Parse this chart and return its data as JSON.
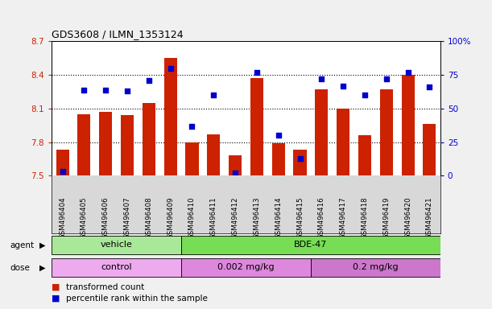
{
  "title": "GDS3608 / ILMN_1353124",
  "samples": [
    "GSM496404",
    "GSM496405",
    "GSM496406",
    "GSM496407",
    "GSM496408",
    "GSM496409",
    "GSM496410",
    "GSM496411",
    "GSM496412",
    "GSM496413",
    "GSM496414",
    "GSM496415",
    "GSM496416",
    "GSM496417",
    "GSM496418",
    "GSM496419",
    "GSM496420",
    "GSM496421"
  ],
  "bar_values": [
    7.73,
    8.05,
    8.07,
    8.04,
    8.15,
    8.55,
    7.8,
    7.87,
    7.68,
    8.37,
    7.79,
    7.73,
    8.27,
    8.1,
    7.86,
    8.27,
    8.4,
    7.96
  ],
  "dot_percentiles": [
    3,
    64,
    64,
    63,
    71,
    80,
    37,
    60,
    2,
    77,
    30,
    13,
    72,
    67,
    60,
    72,
    77,
    66
  ],
  "ymin": 7.5,
  "ymax": 8.7,
  "yticks": [
    7.5,
    7.8,
    8.1,
    8.4,
    8.7
  ],
  "ytick_labels": [
    "7.5",
    "7.8",
    "8.1",
    "8.4",
    "8.7"
  ],
  "right_yticks": [
    0,
    25,
    50,
    75,
    100
  ],
  "right_ytick_labels": [
    "0",
    "25",
    "50",
    "75",
    "100%"
  ],
  "bar_color": "#cc2200",
  "dot_color": "#0000cc",
  "agent_groups": [
    {
      "label": "vehicle",
      "start": 0,
      "end": 6,
      "color": "#aae899"
    },
    {
      "label": "BDE-47",
      "start": 6,
      "end": 18,
      "color": "#77dd55"
    }
  ],
  "dose_groups": [
    {
      "label": "control",
      "start": 0,
      "end": 6,
      "color": "#eeaaee"
    },
    {
      "label": "0.002 mg/kg",
      "start": 6,
      "end": 12,
      "color": "#dd88dd"
    },
    {
      "label": "0.2 mg/kg",
      "start": 12,
      "end": 18,
      "color": "#cc77cc"
    }
  ],
  "legend_bar_label": "transformed count",
  "legend_dot_label": "percentile rank within the sample",
  "fig_bg": "#f0f0f0",
  "plot_bg": "#ffffff",
  "xticklabel_bg": "#d8d8d8"
}
